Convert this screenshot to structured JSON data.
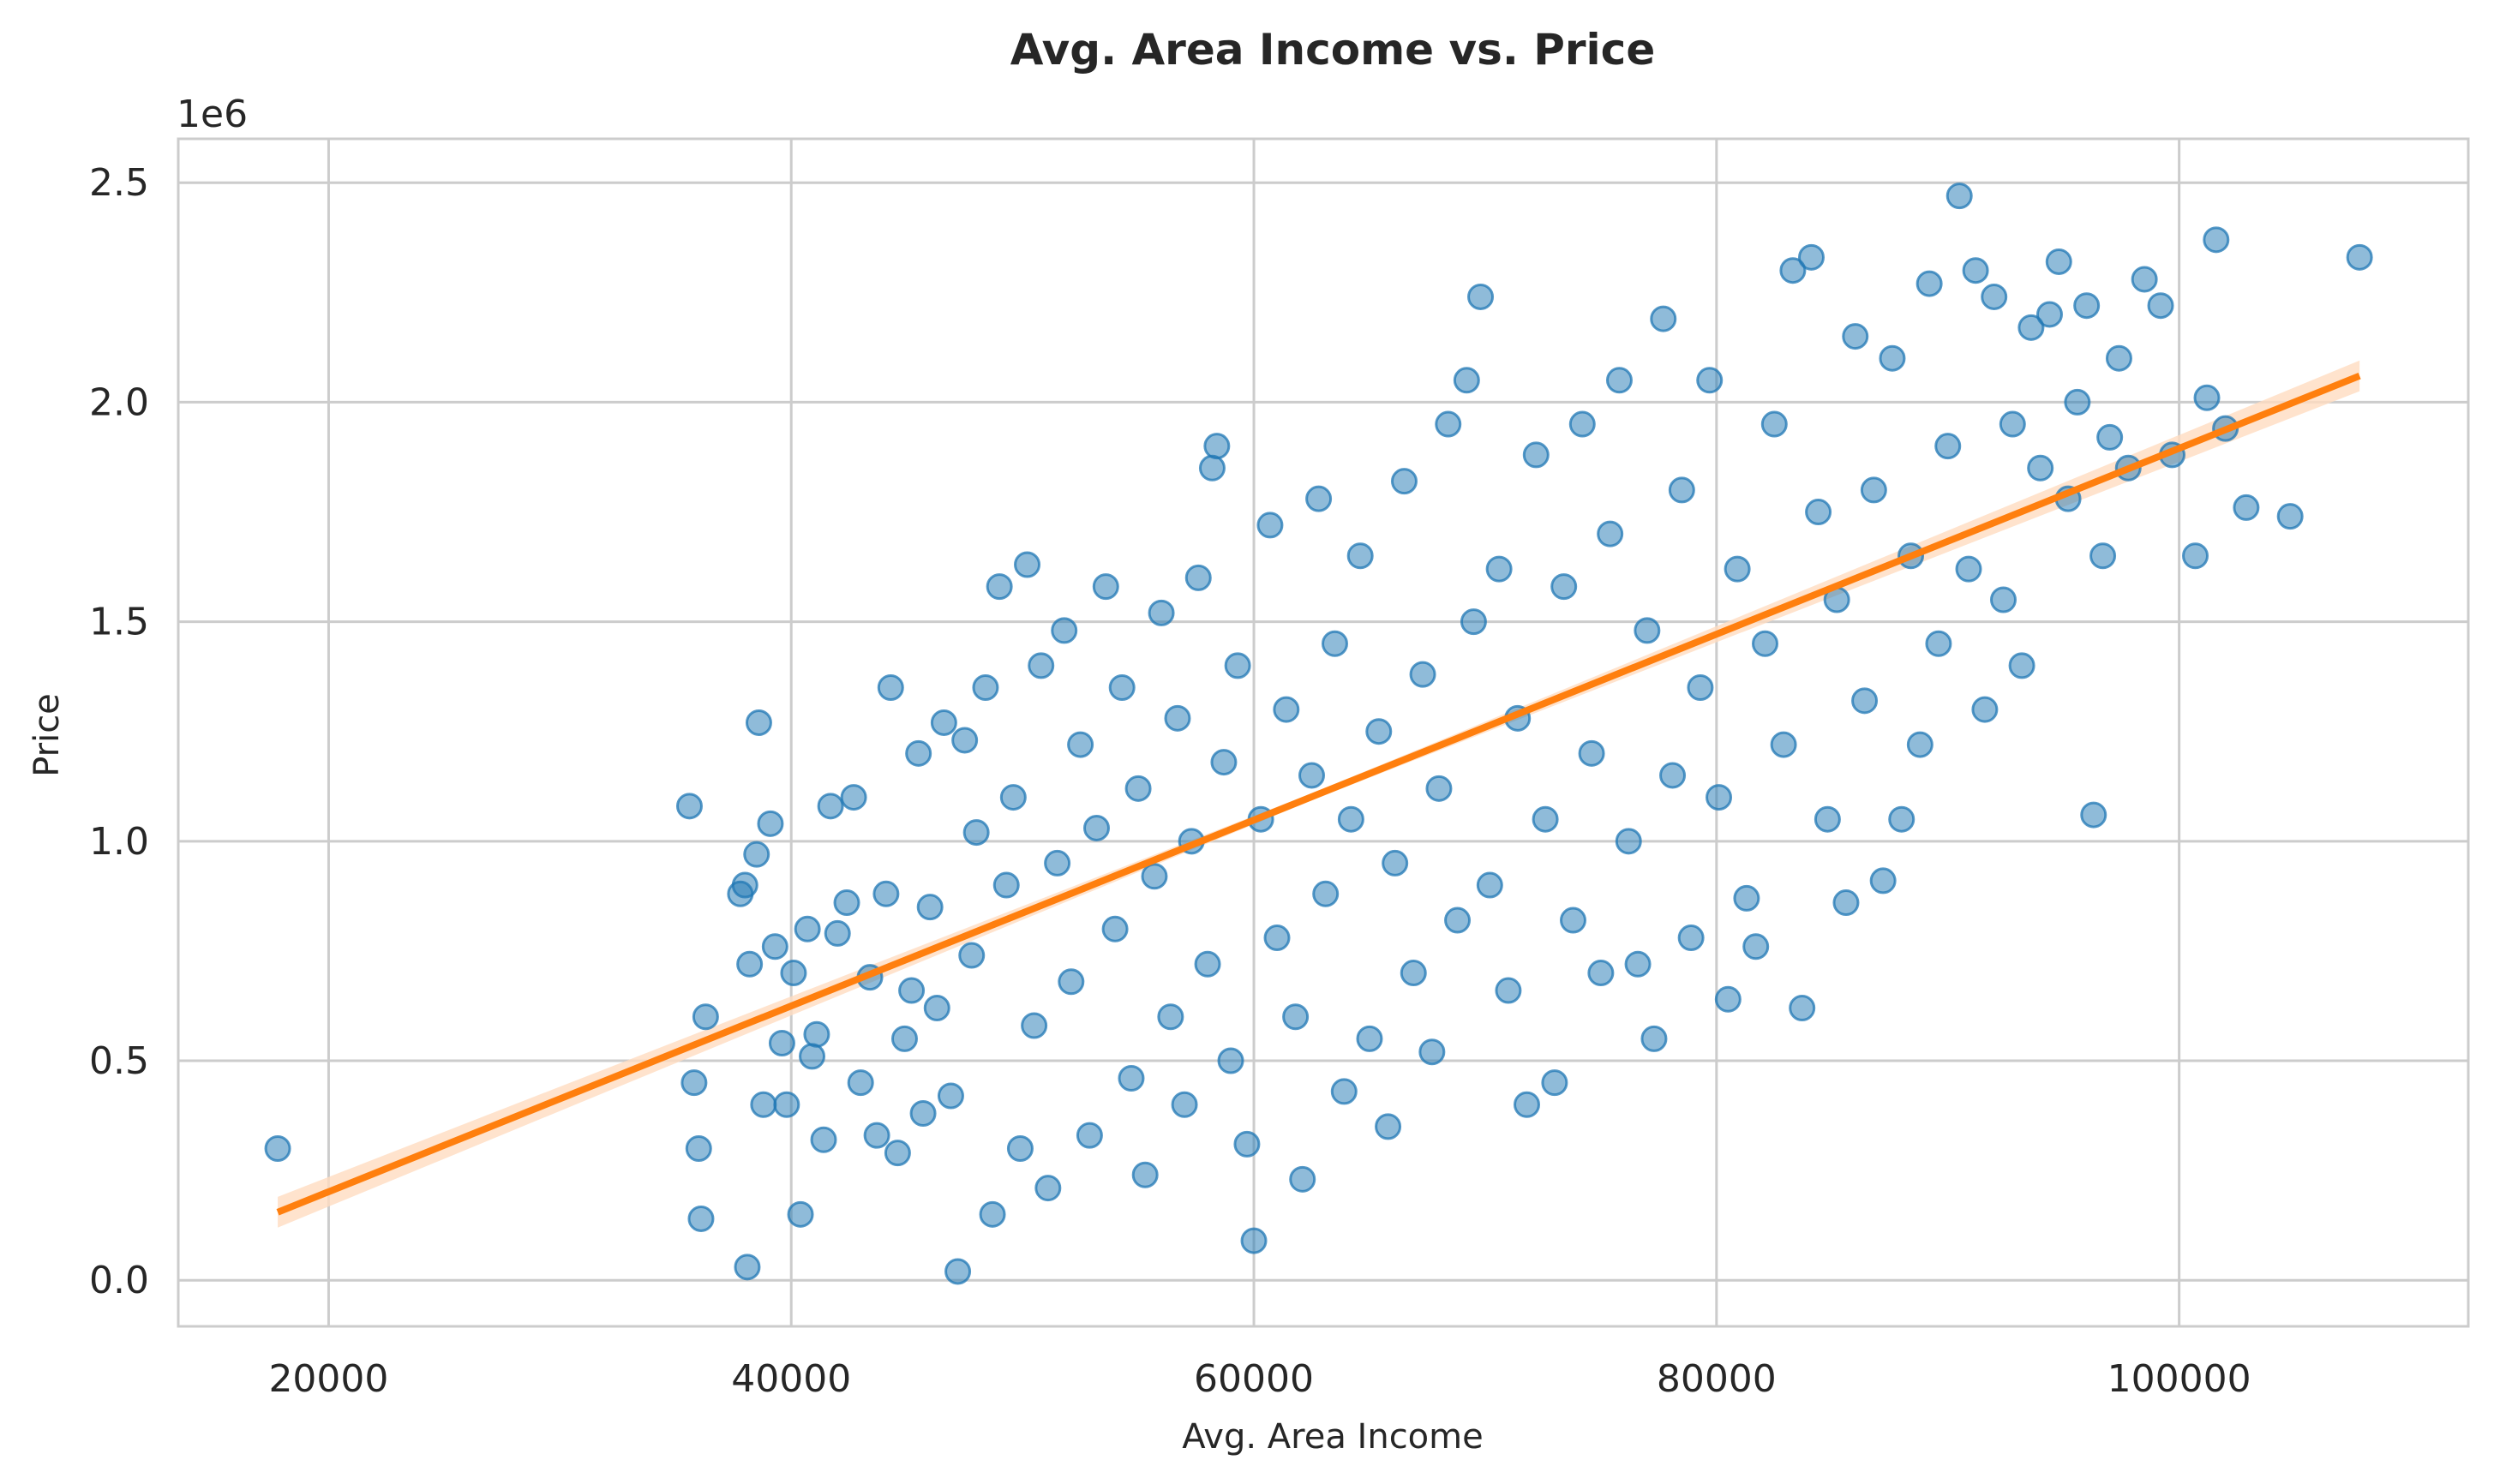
{
  "chart_data": {
    "type": "scatter",
    "title": "Avg. Area Income vs. Price",
    "xlabel": "Avg. Area Income",
    "ylabel": "Price",
    "y_offset_label": "1e6",
    "xlim": [
      13500,
      112500
    ],
    "ylim": [
      -0.105,
      2.6
    ],
    "y_unit_multiplier": 1000000,
    "xticks": [
      20000,
      40000,
      60000,
      80000,
      100000
    ],
    "xtick_labels": [
      "20000",
      "40000",
      "60000",
      "80000",
      "100000"
    ],
    "yticks": [
      0.0,
      0.5,
      1.0,
      1.5,
      2.0,
      2.5
    ],
    "ytick_labels": [
      "0.0",
      "0.5",
      "1.0",
      "1.5",
      "2.0",
      "2.5"
    ],
    "grid": true,
    "colors": {
      "points": "#1f77b4",
      "line": "#ff7f0e",
      "ci_band": "#ffdcc0",
      "grid": "#cccccc",
      "spine": "#cccccc"
    },
    "series": [
      {
        "kind": "scatter",
        "points": [
          [
            17800,
            0.3
          ],
          [
            35600,
            1.08
          ],
          [
            35800,
            0.45
          ],
          [
            36000,
            0.3
          ],
          [
            36100,
            0.14
          ],
          [
            36300,
            0.6
          ],
          [
            37800,
            0.88
          ],
          [
            38000,
            0.9
          ],
          [
            38100,
            0.03
          ],
          [
            38200,
            0.72
          ],
          [
            38500,
            0.97
          ],
          [
            38600,
            1.27
          ],
          [
            38800,
            0.4
          ],
          [
            39100,
            1.04
          ],
          [
            39300,
            0.76
          ],
          [
            39800,
            0.4
          ],
          [
            39600,
            0.54
          ],
          [
            40100,
            0.7
          ],
          [
            40400,
            0.15
          ],
          [
            40700,
            0.8
          ],
          [
            40900,
            0.51
          ],
          [
            41100,
            0.56
          ],
          [
            41400,
            0.32
          ],
          [
            41700,
            1.08
          ],
          [
            42000,
            0.79
          ],
          [
            42400,
            0.86
          ],
          [
            42700,
            1.1
          ],
          [
            43000,
            0.45
          ],
          [
            43400,
            0.69
          ],
          [
            43700,
            0.33
          ],
          [
            44100,
            0.88
          ],
          [
            44300,
            1.35
          ],
          [
            44600,
            0.29
          ],
          [
            44900,
            0.55
          ],
          [
            45200,
            0.66
          ],
          [
            45500,
            1.2
          ],
          [
            45700,
            0.38
          ],
          [
            46000,
            0.85
          ],
          [
            46300,
            0.62
          ],
          [
            46600,
            1.27
          ],
          [
            46900,
            0.42
          ],
          [
            47200,
            0.02
          ],
          [
            47500,
            1.23
          ],
          [
            47800,
            0.74
          ],
          [
            48000,
            1.02
          ],
          [
            48400,
            1.35
          ],
          [
            48700,
            0.15
          ],
          [
            49000,
            1.58
          ],
          [
            49300,
            0.9
          ],
          [
            49600,
            1.1
          ],
          [
            49900,
            0.3
          ],
          [
            50200,
            1.63
          ],
          [
            50500,
            0.58
          ],
          [
            50800,
            1.4
          ],
          [
            51100,
            0.21
          ],
          [
            51500,
            0.95
          ],
          [
            51800,
            1.48
          ],
          [
            52100,
            0.68
          ],
          [
            52500,
            1.22
          ],
          [
            52900,
            0.33
          ],
          [
            53200,
            1.03
          ],
          [
            53600,
            1.58
          ],
          [
            54000,
            0.8
          ],
          [
            54300,
            1.35
          ],
          [
            54700,
            0.46
          ],
          [
            55000,
            1.12
          ],
          [
            55300,
            0.24
          ],
          [
            55700,
            0.92
          ],
          [
            56000,
            1.52
          ],
          [
            56400,
            0.6
          ],
          [
            56700,
            1.28
          ],
          [
            57000,
            0.4
          ],
          [
            57300,
            1.0
          ],
          [
            57600,
            1.6
          ],
          [
            58000,
            0.72
          ],
          [
            58200,
            1.85
          ],
          [
            58400,
            1.9
          ],
          [
            58700,
            1.18
          ],
          [
            59000,
            0.5
          ],
          [
            59300,
            1.4
          ],
          [
            59700,
            0.31
          ],
          [
            60000,
            0.09
          ],
          [
            60300,
            1.05
          ],
          [
            60700,
            1.72
          ],
          [
            61000,
            0.78
          ],
          [
            61400,
            1.3
          ],
          [
            61800,
            0.6
          ],
          [
            62100,
            0.23
          ],
          [
            62500,
            1.15
          ],
          [
            62800,
            1.78
          ],
          [
            63100,
            0.88
          ],
          [
            63500,
            1.45
          ],
          [
            63900,
            0.43
          ],
          [
            64200,
            1.05
          ],
          [
            64600,
            1.65
          ],
          [
            65000,
            0.55
          ],
          [
            65400,
            1.25
          ],
          [
            65800,
            0.35
          ],
          [
            66100,
            0.95
          ],
          [
            66500,
            1.82
          ],
          [
            66900,
            0.7
          ],
          [
            67300,
            1.38
          ],
          [
            67700,
            0.52
          ],
          [
            68000,
            1.12
          ],
          [
            68400,
            1.95
          ],
          [
            68800,
            0.82
          ],
          [
            69200,
            2.05
          ],
          [
            69500,
            1.5
          ],
          [
            69800,
            2.24
          ],
          [
            70200,
            0.9
          ],
          [
            70600,
            1.62
          ],
          [
            71000,
            0.66
          ],
          [
            71400,
            1.28
          ],
          [
            71800,
            0.4
          ],
          [
            72200,
            1.88
          ],
          [
            72600,
            1.05
          ],
          [
            73000,
            0.45
          ],
          [
            73400,
            1.58
          ],
          [
            73800,
            0.82
          ],
          [
            74200,
            1.95
          ],
          [
            74600,
            1.2
          ],
          [
            75000,
            0.7
          ],
          [
            75400,
            1.7
          ],
          [
            75800,
            2.05
          ],
          [
            76200,
            1.0
          ],
          [
            76600,
            0.72
          ],
          [
            77000,
            1.48
          ],
          [
            77300,
            0.55
          ],
          [
            77700,
            2.19
          ],
          [
            78100,
            1.15
          ],
          [
            78500,
            1.8
          ],
          [
            78900,
            0.78
          ],
          [
            79300,
            1.35
          ],
          [
            79700,
            2.05
          ],
          [
            80100,
            1.1
          ],
          [
            80500,
            0.64
          ],
          [
            80900,
            1.62
          ],
          [
            81300,
            0.87
          ],
          [
            81700,
            0.76
          ],
          [
            82100,
            1.45
          ],
          [
            82500,
            1.95
          ],
          [
            82900,
            1.22
          ],
          [
            83300,
            2.3
          ],
          [
            83700,
            0.62
          ],
          [
            84100,
            2.33
          ],
          [
            84400,
            1.75
          ],
          [
            84800,
            1.05
          ],
          [
            85200,
            1.55
          ],
          [
            85600,
            0.86
          ],
          [
            86000,
            2.15
          ],
          [
            86400,
            1.32
          ],
          [
            86800,
            1.8
          ],
          [
            87200,
            0.91
          ],
          [
            87600,
            2.1
          ],
          [
            88000,
            1.05
          ],
          [
            88400,
            1.65
          ],
          [
            88800,
            1.22
          ],
          [
            89200,
            2.27
          ],
          [
            89600,
            1.45
          ],
          [
            90000,
            1.9
          ],
          [
            90500,
            2.47
          ],
          [
            90900,
            1.62
          ],
          [
            91200,
            2.3
          ],
          [
            91600,
            1.3
          ],
          [
            92000,
            2.24
          ],
          [
            92400,
            1.55
          ],
          [
            92800,
            1.95
          ],
          [
            93200,
            1.4
          ],
          [
            93600,
            2.17
          ],
          [
            94000,
            1.85
          ],
          [
            94400,
            2.2
          ],
          [
            94800,
            2.32
          ],
          [
            95200,
            1.78
          ],
          [
            95600,
            2.0
          ],
          [
            96000,
            2.22
          ],
          [
            96300,
            1.06
          ],
          [
            96700,
            1.65
          ],
          [
            97000,
            1.92
          ],
          [
            97400,
            2.1
          ],
          [
            97800,
            1.85
          ],
          [
            98500,
            2.28
          ],
          [
            99200,
            2.22
          ],
          [
            99700,
            1.88
          ],
          [
            100700,
            1.65
          ],
          [
            101200,
            2.01
          ],
          [
            101600,
            2.37
          ],
          [
            102000,
            1.94
          ],
          [
            102900,
            1.76
          ],
          [
            104800,
            1.74
          ],
          [
            107800,
            2.33
          ]
        ]
      },
      {
        "kind": "regression",
        "x": [
          17800,
          107800
        ],
        "y": [
          0.155,
          2.06
        ]
      }
    ]
  }
}
